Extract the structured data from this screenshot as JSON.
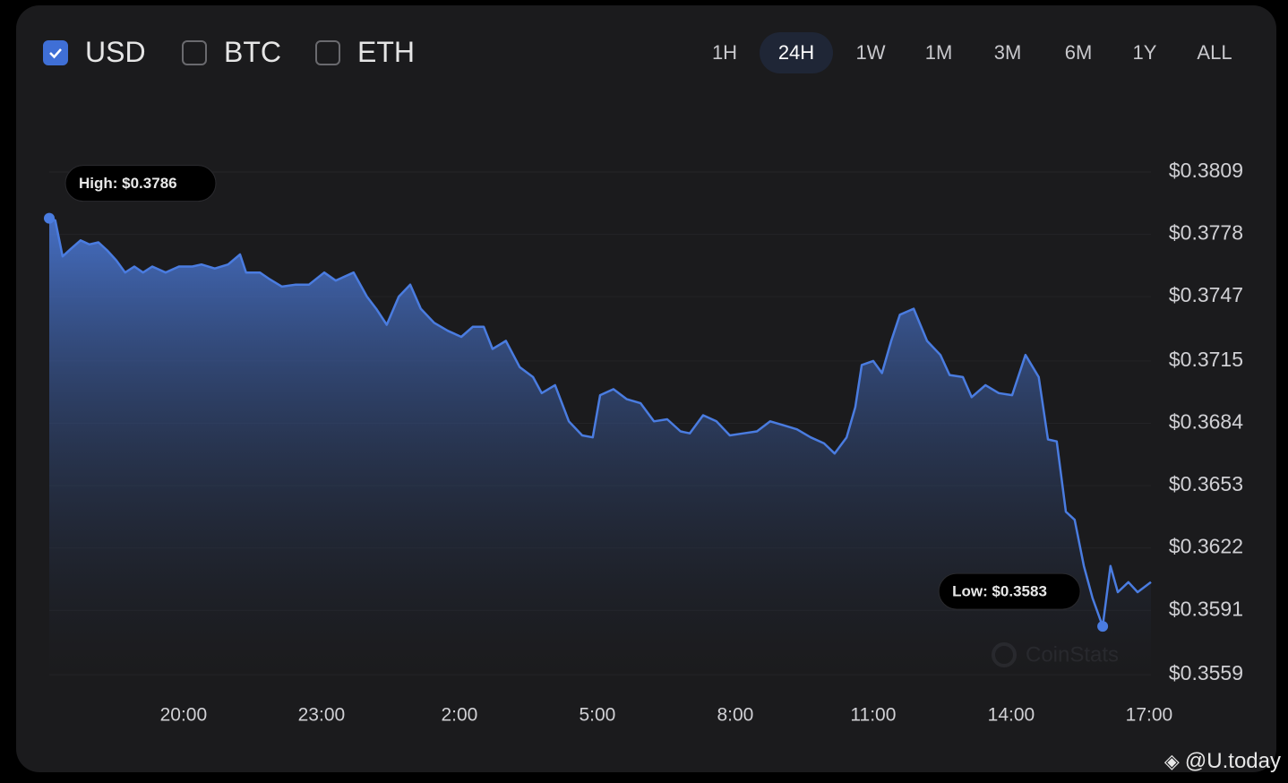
{
  "toolbar": {
    "currencies": [
      {
        "label": "USD",
        "checked": true
      },
      {
        "label": "BTC",
        "checked": false
      },
      {
        "label": "ETH",
        "checked": false
      }
    ],
    "ranges": [
      {
        "label": "1H",
        "active": false
      },
      {
        "label": "24H",
        "active": true
      },
      {
        "label": "1W",
        "active": false
      },
      {
        "label": "1M",
        "active": false
      },
      {
        "label": "3M",
        "active": false
      },
      {
        "label": "6M",
        "active": false
      },
      {
        "label": "1Y",
        "active": false
      },
      {
        "label": "ALL",
        "active": false
      }
    ]
  },
  "chart_data": {
    "type": "area",
    "color": "#4a7ce0",
    "high_label": "High: $0.3786",
    "low_label": "Low: $0.3583",
    "watermark": "CoinStats",
    "x": [
      17.08,
      17.21,
      17.37,
      17.56,
      17.76,
      17.95,
      18.15,
      18.34,
      18.54,
      18.73,
      18.93,
      19.12,
      19.32,
      19.61,
      19.9,
      20.19,
      20.39,
      20.68,
      20.97,
      21.23,
      21.36,
      21.66,
      21.85,
      22.14,
      22.44,
      22.73,
      23.06,
      23.31,
      23.7,
      23.99,
      24.19,
      24.42,
      24.68,
      24.93,
      25.16,
      25.45,
      25.75,
      26.04,
      26.29,
      26.53,
      26.72,
      27.01,
      27.31,
      27.6,
      27.79,
      28.08,
      28.38,
      28.67,
      28.9,
      29.06,
      29.35,
      29.64,
      29.94,
      30.23,
      30.52,
      30.81,
      31.01,
      31.3,
      31.59,
      31.88,
      32.18,
      32.47,
      32.76,
      33.05,
      33.34,
      33.64,
      33.93,
      34.16,
      34.42,
      34.61,
      34.75,
      35.0,
      35.19,
      35.39,
      35.58,
      35.88,
      36.17,
      36.46,
      36.66,
      36.95,
      37.14,
      37.44,
      37.73,
      38.02,
      38.31,
      38.6,
      38.8,
      38.99,
      39.19,
      39.38,
      39.58,
      39.77,
      39.99,
      40.16,
      40.32,
      40.55,
      40.75,
      41.04
    ],
    "values": [
      0.3786,
      0.3785,
      0.3767,
      0.3771,
      0.3775,
      0.3773,
      0.3774,
      0.377,
      0.3765,
      0.3759,
      0.3762,
      0.3759,
      0.3762,
      0.3759,
      0.3762,
      0.3762,
      0.3763,
      0.3761,
      0.3763,
      0.3768,
      0.3759,
      0.3759,
      0.3756,
      0.3752,
      0.3753,
      0.3753,
      0.3759,
      0.3755,
      0.3759,
      0.3747,
      0.3741,
      0.3733,
      0.3747,
      0.3753,
      0.3741,
      0.3734,
      0.373,
      0.3727,
      0.3732,
      0.3732,
      0.3721,
      0.3725,
      0.3712,
      0.3707,
      0.3699,
      0.3703,
      0.3685,
      0.3678,
      0.3677,
      0.3698,
      0.3701,
      0.3696,
      0.3694,
      0.3685,
      0.3686,
      0.368,
      0.3679,
      0.3688,
      0.3685,
      0.3678,
      0.3679,
      0.368,
      0.3685,
      0.3683,
      0.3681,
      0.3677,
      0.3674,
      0.3669,
      0.3677,
      0.3692,
      0.3713,
      0.3715,
      0.3709,
      0.3725,
      0.3738,
      0.3741,
      0.3725,
      0.3718,
      0.3708,
      0.3707,
      0.3697,
      0.3703,
      0.3699,
      0.3698,
      0.3718,
      0.3707,
      0.3676,
      0.3675,
      0.364,
      0.3636,
      0.3613,
      0.3597,
      0.3583,
      0.3613,
      0.36,
      0.3605,
      0.36,
      0.3605
    ],
    "xlim": [
      17.08,
      41.04
    ],
    "ylim": [
      0.3559,
      0.3809
    ],
    "xticks": [
      {
        "value": 20,
        "label": "20:00"
      },
      {
        "value": 23,
        "label": "23:00"
      },
      {
        "value": 26,
        "label": "2:00"
      },
      {
        "value": 29,
        "label": "5:00"
      },
      {
        "value": 32,
        "label": "8:00"
      },
      {
        "value": 35,
        "label": "11:00"
      },
      {
        "value": 38,
        "label": "14:00"
      },
      {
        "value": 41,
        "label": "17:00"
      }
    ],
    "yticks": [
      {
        "value": 0.3809,
        "label": "$0.3809"
      },
      {
        "value": 0.3778,
        "label": "$0.3778"
      },
      {
        "value": 0.3747,
        "label": "$0.3747"
      },
      {
        "value": 0.3715,
        "label": "$0.3715"
      },
      {
        "value": 0.3684,
        "label": "$0.3684"
      },
      {
        "value": 0.3653,
        "label": "$0.3653"
      },
      {
        "value": 0.3622,
        "label": "$0.3622"
      },
      {
        "value": 0.3591,
        "label": "$0.3591"
      },
      {
        "value": 0.3559,
        "label": "$0.3559"
      }
    ],
    "grid": true
  },
  "credit": "@U.today"
}
